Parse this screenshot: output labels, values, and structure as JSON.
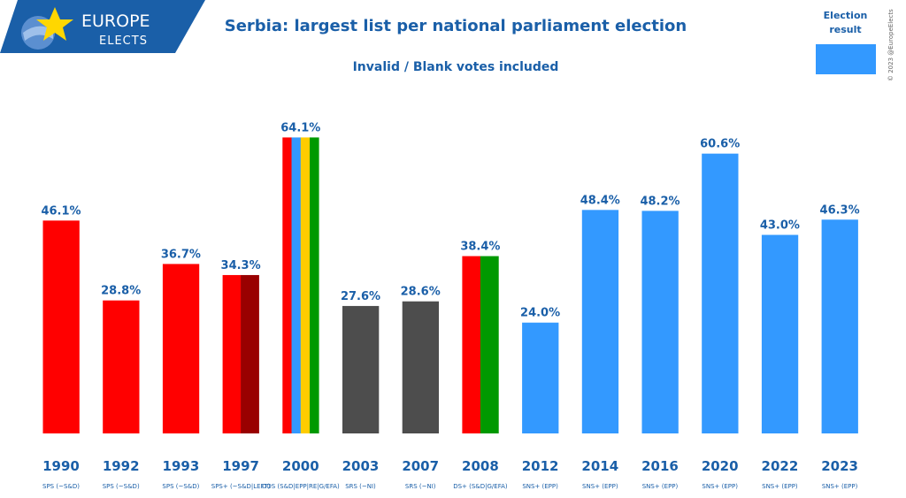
{
  "logo": {
    "line1": "EUROPE",
    "line2": "ELECTS"
  },
  "copyright": "© 2023 @EuropeElects",
  "legend": {
    "label_line1": "Election",
    "label_line2": "result",
    "color": "#3399ff"
  },
  "chart_data": {
    "type": "bar",
    "title": "Serbia: largest list per national parliament election",
    "subtitle": "Invalid / Blank votes included",
    "ylim": [
      0,
      70
    ],
    "categories": [
      "1990",
      "1992",
      "1993",
      "1997",
      "2000",
      "2003",
      "2007",
      "2008",
      "2012",
      "2014",
      "2016",
      "2020",
      "2022",
      "2023"
    ],
    "parties": [
      "SPS (~S&D)",
      "SPS (~S&D)",
      "SPS (~S&D)",
      "SPS+ (~S&D|LEFT)",
      "DOS (S&D|EPP|RE|G/EFA)",
      "SRS (~NI)",
      "SRS (~NI)",
      "DS+ (S&D|G/EFA)",
      "SNS+ (EPP)",
      "SNS+ (EPP)",
      "SNS+ (EPP)",
      "SNS+ (EPP)",
      "SNS+ (EPP)",
      "SNS+ (EPP)"
    ],
    "values": [
      46.1,
      28.8,
      36.7,
      34.3,
      64.1,
      27.6,
      28.6,
      38.4,
      24.0,
      48.4,
      48.2,
      60.6,
      43.0,
      46.3
    ],
    "labels": [
      "46.1%",
      "28.8%",
      "36.7%",
      "34.3%",
      "64.1%",
      "27.6%",
      "28.6%",
      "38.4%",
      "24.0%",
      "48.4%",
      "48.2%",
      "60.6%",
      "43.0%",
      "46.3%"
    ],
    "bar_colors": [
      [
        "#ff0000"
      ],
      [
        "#ff0000"
      ],
      [
        "#ff0000"
      ],
      [
        "#ff0000",
        "#990000"
      ],
      [
        "#ff0000",
        "#3399ff",
        "#ffcc00",
        "#009900"
      ],
      [
        "#4d4d4d"
      ],
      [
        "#4d4d4d"
      ],
      [
        "#ff0000",
        "#009900"
      ],
      [
        "#3399ff"
      ],
      [
        "#3399ff"
      ],
      [
        "#3399ff"
      ],
      [
        "#3399ff"
      ],
      [
        "#3399ff"
      ],
      [
        "#3399ff"
      ]
    ]
  }
}
